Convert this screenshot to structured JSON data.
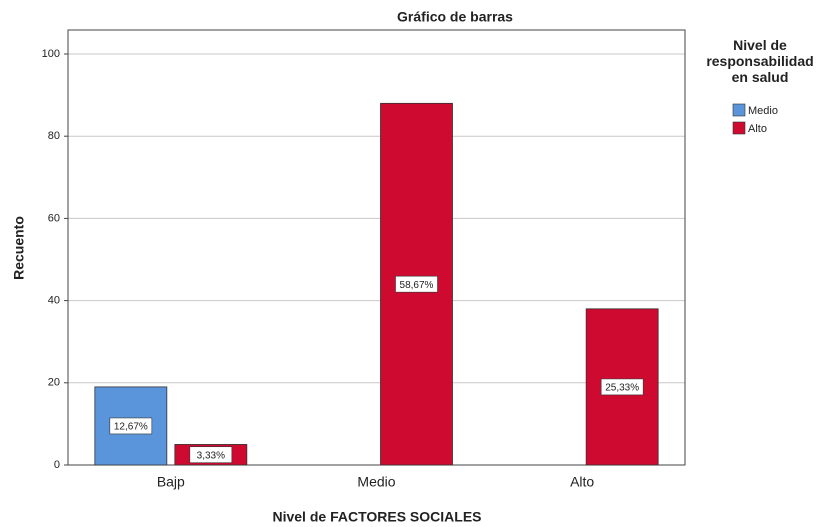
{
  "chart_data": {
    "type": "bar",
    "title": "Gráfico de barras",
    "x_label": "Nivel de FACTORES SOCIALES",
    "y_label": "Recuento",
    "legend_title": "Nivel de responsabilidad en salud",
    "categories": [
      "Bajp",
      "Medio",
      "Alto"
    ],
    "series": [
      {
        "name": "Medio",
        "color": "#5a95db",
        "values": [
          19,
          null,
          null
        ],
        "value_labels": [
          "12,67%",
          null,
          null
        ]
      },
      {
        "name": "Alto",
        "color": "#cf0a30",
        "values": [
          5,
          88,
          38
        ],
        "value_labels": [
          "3,33%",
          "58,67%",
          "25,33%"
        ]
      }
    ],
    "ylim": [
      0,
      100
    ],
    "yticks": [
      0,
      20,
      40,
      60,
      80,
      100
    ],
    "grid": true,
    "legend": "right"
  }
}
